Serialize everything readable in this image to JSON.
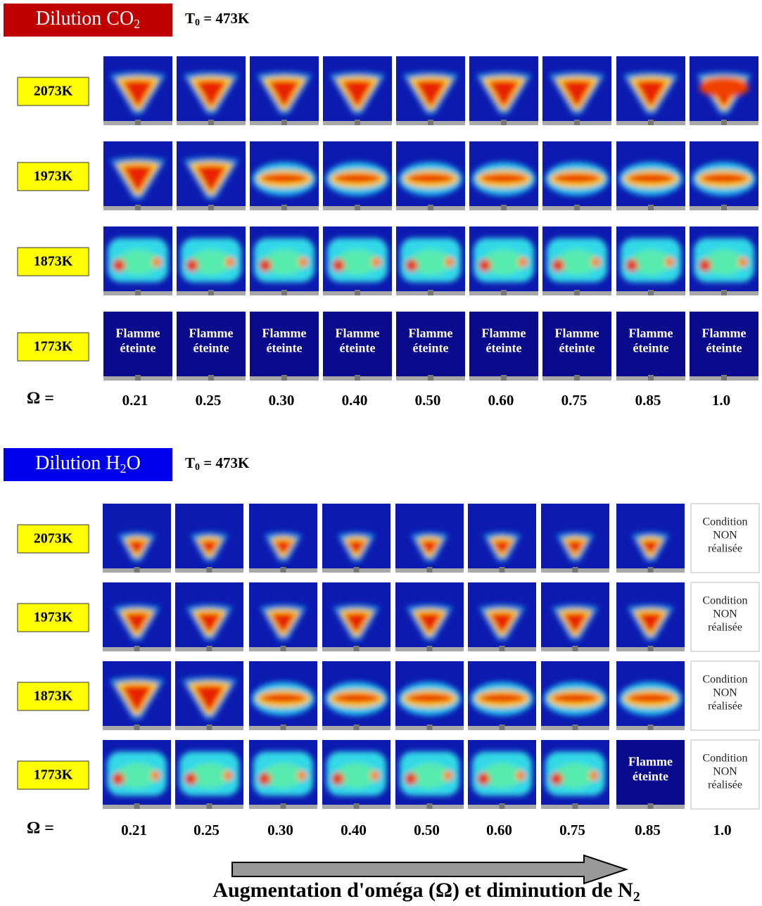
{
  "sections": [
    {
      "title": "Dilution CO",
      "title_sub": "2",
      "t0_main": "T",
      "t0_sub": "0",
      "t0_rest": " = 473K",
      "rows": [
        {
          "label": "2073K",
          "cells": [
            null,
            null,
            null,
            null,
            null,
            null,
            null,
            null,
            null
          ]
        },
        {
          "label": "1973K",
          "cells": [
            null,
            null,
            null,
            null,
            null,
            null,
            null,
            null,
            null
          ]
        },
        {
          "label": "1873K",
          "cells": [
            null,
            null,
            null,
            null,
            null,
            null,
            null,
            null,
            null
          ]
        },
        {
          "label": "1773K",
          "cells": [
            [
              "Flamme",
              "éteinte"
            ],
            [
              "Flamme",
              "éteinte"
            ],
            [
              "Flamme",
              "éteinte"
            ],
            [
              "Flamme",
              "éteinte"
            ],
            [
              "Flamme",
              "éteinte"
            ],
            [
              "Flamme",
              "éteinte"
            ],
            [
              "Flamme",
              "éteinte"
            ],
            [
              "Flamme",
              "éteinte"
            ],
            [
              "Flamme",
              "éteinte"
            ]
          ]
        }
      ],
      "omega_label": "Ω =",
      "omega_values": [
        "0.21",
        "0.25",
        "0.30",
        "0.40",
        "0.50",
        "0.60",
        "0.75",
        "0.85",
        "1.0"
      ]
    },
    {
      "title": "Dilution H",
      "title_sub": "2",
      "title_rest": "O",
      "t0_main": "T",
      "t0_sub": "0",
      "t0_rest": " = 473K",
      "rows": [
        {
          "label": "2073K",
          "cells": [
            null,
            null,
            null,
            null,
            null,
            null,
            null,
            null,
            [
              "Condition",
              "NON",
              "réalisée"
            ]
          ]
        },
        {
          "label": "1973K",
          "cells": [
            null,
            null,
            null,
            null,
            null,
            null,
            null,
            null,
            [
              "Condition",
              "NON",
              "réalisée"
            ]
          ]
        },
        {
          "label": "1873K",
          "cells": [
            null,
            null,
            null,
            null,
            null,
            null,
            null,
            null,
            [
              "Condition",
              "NON",
              "réalisée"
            ]
          ]
        },
        {
          "label": "1773K",
          "cells": [
            null,
            null,
            null,
            null,
            null,
            null,
            null,
            [
              "Flamme",
              "éteinte"
            ],
            [
              "Condition",
              "NON",
              "réalisée"
            ]
          ]
        }
      ],
      "omega_label": "Ω =",
      "omega_values": [
        "0.21",
        "0.25",
        "0.30",
        "0.40",
        "0.50",
        "0.60",
        "0.75",
        "0.85",
        "1.0"
      ]
    }
  ],
  "footer": {
    "main": "Augmentation d'oméga (Ω) et diminution de N",
    "sub": "2"
  }
}
